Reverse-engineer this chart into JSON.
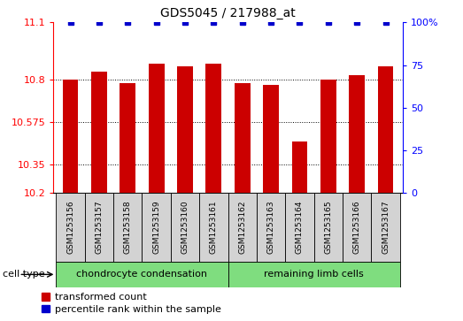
{
  "title": "GDS5045 / 217988_at",
  "samples": [
    "GSM1253156",
    "GSM1253157",
    "GSM1253158",
    "GSM1253159",
    "GSM1253160",
    "GSM1253161",
    "GSM1253162",
    "GSM1253163",
    "GSM1253164",
    "GSM1253165",
    "GSM1253166",
    "GSM1253167"
  ],
  "red_values": [
    10.8,
    10.84,
    10.78,
    10.88,
    10.87,
    10.88,
    10.78,
    10.77,
    10.47,
    10.8,
    10.82,
    10.87
  ],
  "blue_values": [
    100,
    100,
    100,
    100,
    100,
    100,
    100,
    100,
    100,
    100,
    100,
    100
  ],
  "ylim_left": [
    10.2,
    11.1
  ],
  "ylim_right": [
    0,
    100
  ],
  "yticks_left": [
    10.2,
    10.35,
    10.575,
    10.8,
    11.1
  ],
  "yticks_right": [
    0,
    25,
    50,
    75,
    100
  ],
  "grid_ticks": [
    10.35,
    10.575,
    10.8
  ],
  "bar_color": "#cc0000",
  "dot_color": "#0000cc",
  "group1_label": "chondrocyte condensation",
  "group2_label": "remaining limb cells",
  "group1_count": 6,
  "group2_count": 6,
  "legend_red": "transformed count",
  "legend_blue": "percentile rank within the sample",
  "cell_type_label": "cell type",
  "group_bg_color": "#7fdd7f",
  "sample_bg_color": "#d3d3d3",
  "plot_bg_color": "#ffffff",
  "bar_width": 0.55
}
